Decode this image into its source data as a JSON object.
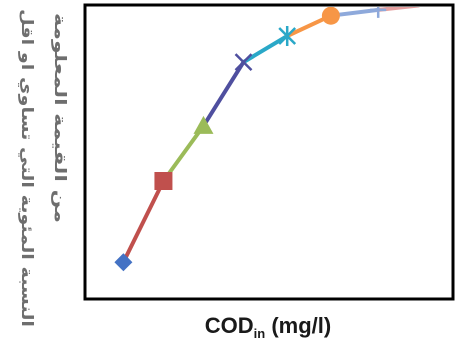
{
  "chart_data": {
    "type": "line",
    "title": "",
    "xlabel_main": "COD",
    "xlabel_sub": "in",
    "xlabel_unit": " (mg/l)",
    "ylabel_lines": [
      "النسبة المئوية التي تساوي او اقل",
      "من القيمة المعلومة"
    ],
    "xlim": [
      0,
      100
    ],
    "ylim": [
      0,
      100
    ],
    "grid": false,
    "legend": "none",
    "points": [
      {
        "x": 10,
        "y": 12,
        "marker": "diamond",
        "color": "#4472c4"
      },
      {
        "x": 21,
        "y": 40,
        "marker": "square",
        "color": "#c0504d"
      },
      {
        "x": 32,
        "y": 59,
        "marker": "triangle",
        "color": "#9bbb59"
      },
      {
        "x": 43,
        "y": 81,
        "marker": "x",
        "color": "#4f4f9f"
      },
      {
        "x": 55,
        "y": 90,
        "marker": "star",
        "color": "#2aa8c8"
      },
      {
        "x": 67,
        "y": 97,
        "marker": "circle",
        "color": "#f79646"
      },
      {
        "x": 80,
        "y": 99,
        "marker": "plus",
        "color": "#8ea9db"
      },
      {
        "x": 91,
        "y": 100.5,
        "marker": "none",
        "color": "#e6a0a0"
      }
    ]
  }
}
